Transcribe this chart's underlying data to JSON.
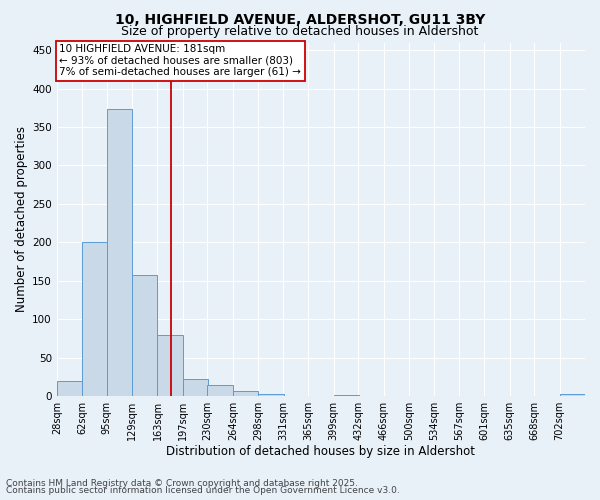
{
  "title_line1": "10, HIGHFIELD AVENUE, ALDERSHOT, GU11 3BY",
  "title_line2": "Size of property relative to detached houses in Aldershot",
  "xlabel": "Distribution of detached houses by size in Aldershot",
  "ylabel": "Number of detached properties",
  "bin_edges": [
    28,
    62,
    95,
    129,
    163,
    197,
    230,
    264,
    298,
    331,
    365,
    399,
    432,
    466,
    500,
    534,
    567,
    601,
    635,
    668,
    702
  ],
  "bar_heights": [
    20,
    201,
    374,
    158,
    80,
    22,
    15,
    7,
    3,
    0,
    0,
    2,
    0,
    0,
    0,
    0,
    0,
    0,
    0,
    0,
    3
  ],
  "bar_color": "#c9d9e8",
  "bar_edge_color": "#5b9bd5",
  "vline_x": 181,
  "vline_color": "#cc0000",
  "ylim": [
    0,
    460
  ],
  "yticks": [
    0,
    50,
    100,
    150,
    200,
    250,
    300,
    350,
    400,
    450
  ],
  "annotation_text": "10 HIGHFIELD AVENUE: 181sqm\n← 93% of detached houses are smaller (803)\n7% of semi-detached houses are larger (61) →",
  "annotation_box_color": "#cc0000",
  "footnote1": "Contains HM Land Registry data © Crown copyright and database right 2025.",
  "footnote2": "Contains public sector information licensed under the Open Government Licence v3.0.",
  "background_color": "#e8f0f8",
  "grid_color": "#ffffff",
  "title_fontsize": 10,
  "subtitle_fontsize": 9,
  "axis_label_fontsize": 8.5,
  "tick_label_fontsize": 7,
  "annotation_fontsize": 7.5,
  "footnote_fontsize": 6.5
}
